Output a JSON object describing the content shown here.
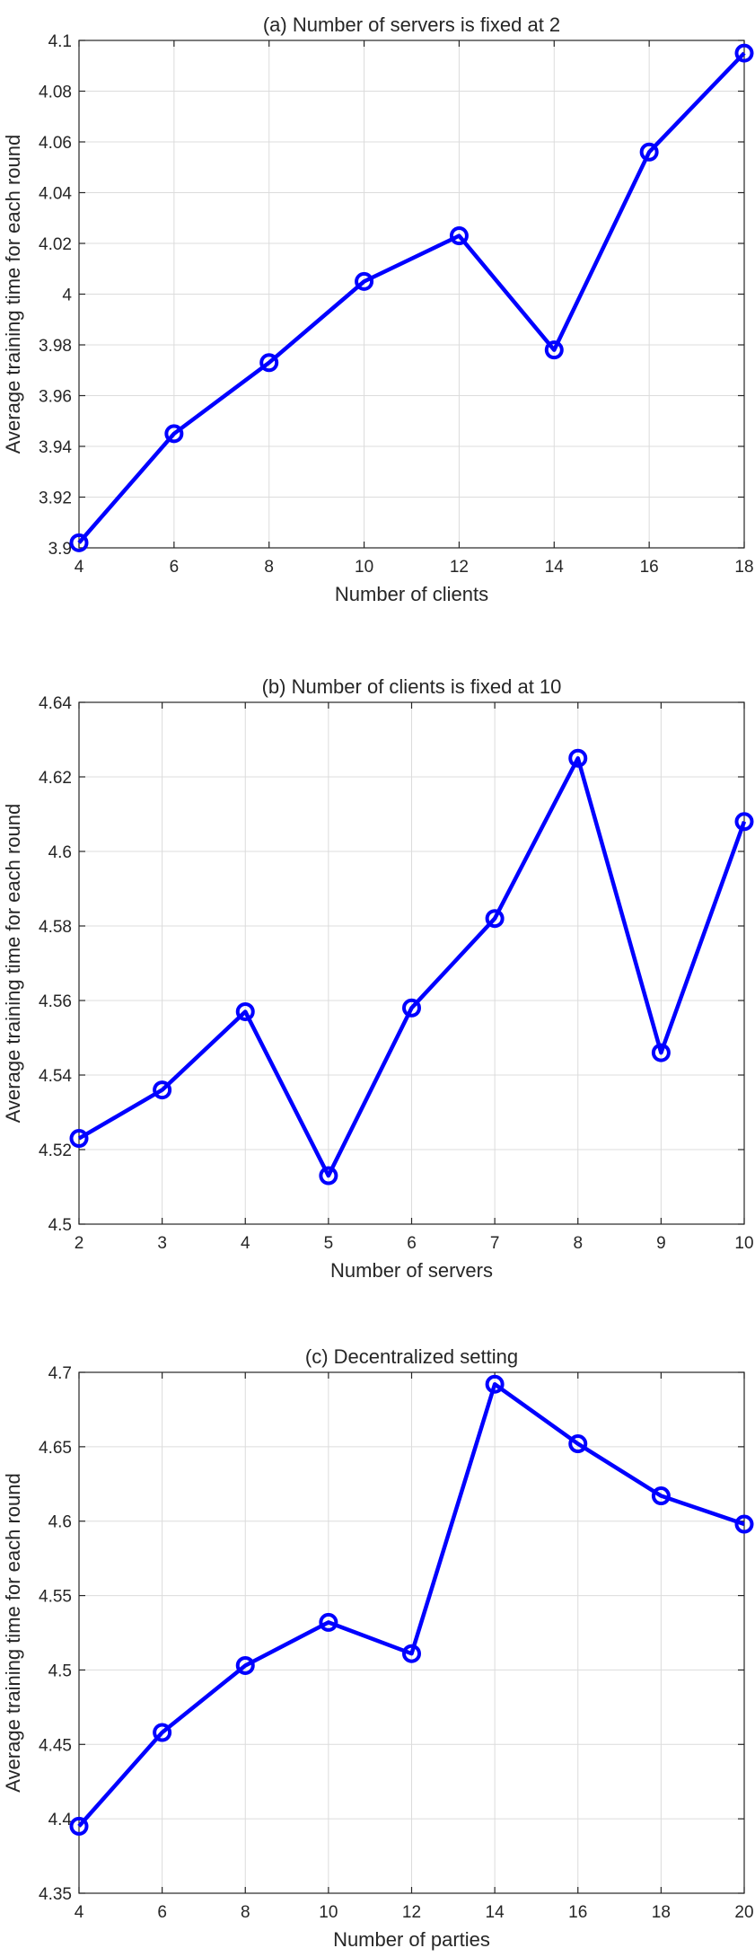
{
  "chart_data": [
    {
      "type": "line",
      "title": "(a) Number of servers is fixed at 2",
      "xlabel": "Number of clients",
      "ylabel": "Average training time for each round",
      "x": [
        4,
        6,
        8,
        10,
        12,
        14,
        16,
        18
      ],
      "series": [
        {
          "values": [
            3.902,
            3.945,
            3.973,
            4.005,
            4.023,
            3.978,
            4.056,
            4.095
          ]
        }
      ],
      "xlim": [
        4,
        18
      ],
      "ylim": [
        3.9,
        4.1
      ],
      "xticks": [
        4,
        6,
        8,
        10,
        12,
        14,
        16,
        18
      ],
      "xtick_labels": [
        "4",
        "6",
        "8",
        "10",
        "12",
        "14",
        "16",
        "18"
      ],
      "yticks": [
        3.9,
        3.92,
        3.94,
        3.96,
        3.98,
        4.0,
        4.02,
        4.04,
        4.06,
        4.08,
        4.1
      ],
      "ytick_labels": [
        "3.9",
        "3.92",
        "3.94",
        "3.96",
        "3.98",
        "4",
        "4.02",
        "4.04",
        "4.06",
        "4.08",
        "4.1"
      ],
      "grid": true,
      "color": "#0000ff",
      "marker": "circle"
    },
    {
      "type": "line",
      "title": "(b) Number of clients is fixed at 10",
      "xlabel": "Number of servers",
      "ylabel": "Average training time for each round",
      "x": [
        2,
        3,
        4,
        5,
        6,
        7,
        8,
        9,
        10
      ],
      "series": [
        {
          "values": [
            4.523,
            4.536,
            4.557,
            4.513,
            4.558,
            4.582,
            4.625,
            4.546,
            4.608
          ]
        }
      ],
      "xlim": [
        2,
        10
      ],
      "ylim": [
        4.5,
        4.64
      ],
      "xticks": [
        2,
        3,
        4,
        5,
        6,
        7,
        8,
        9,
        10
      ],
      "xtick_labels": [
        "2",
        "3",
        "4",
        "5",
        "6",
        "7",
        "8",
        "9",
        "10"
      ],
      "yticks": [
        4.5,
        4.52,
        4.54,
        4.56,
        4.58,
        4.6,
        4.62,
        4.64
      ],
      "ytick_labels": [
        "4.5",
        "4.52",
        "4.54",
        "4.56",
        "4.58",
        "4.6",
        "4.62",
        "4.64"
      ],
      "grid": true,
      "color": "#0000ff",
      "marker": "circle"
    },
    {
      "type": "line",
      "title": "(c) Decentralized setting",
      "xlabel": "Number of parties",
      "ylabel": "Average training time for each round",
      "x": [
        4,
        6,
        8,
        10,
        12,
        14,
        16,
        18,
        20
      ],
      "series": [
        {
          "values": [
            4.395,
            4.458,
            4.503,
            4.532,
            4.511,
            4.692,
            4.652,
            4.617,
            4.598
          ]
        }
      ],
      "xlim": [
        4,
        20
      ],
      "ylim": [
        4.35,
        4.7
      ],
      "xticks": [
        4,
        6,
        8,
        10,
        12,
        14,
        16,
        18,
        20
      ],
      "xtick_labels": [
        "4",
        "6",
        "8",
        "10",
        "12",
        "14",
        "16",
        "18",
        "20"
      ],
      "yticks": [
        4.35,
        4.4,
        4.45,
        4.5,
        4.55,
        4.6,
        4.65,
        4.7
      ],
      "ytick_labels": [
        "4.35",
        "4.4",
        "4.45",
        "4.5",
        "4.55",
        "4.6",
        "4.65",
        "4.7"
      ],
      "grid": true,
      "color": "#0000ff",
      "marker": "circle"
    }
  ]
}
